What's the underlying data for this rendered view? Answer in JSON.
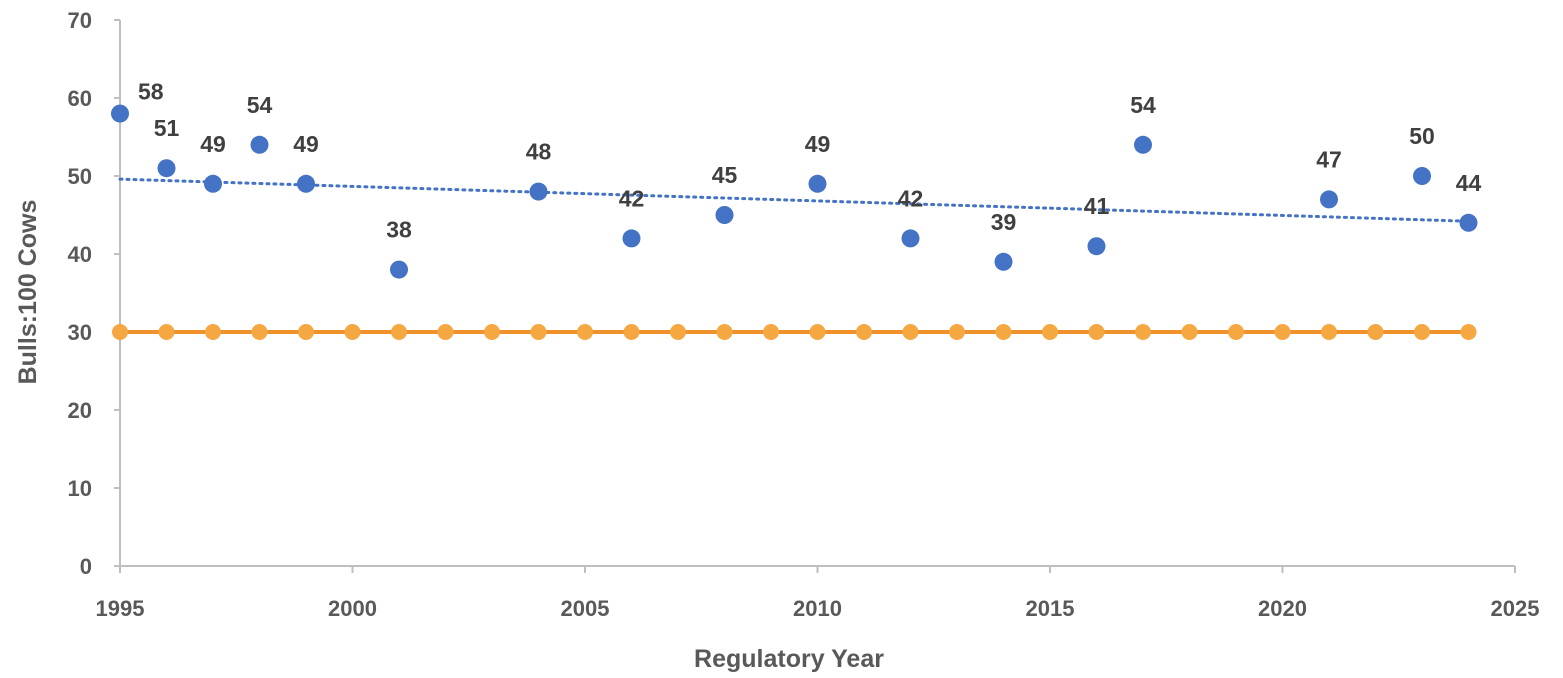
{
  "chart_data": {
    "type": "scatter",
    "xlabel": "Regulatory Year",
    "ylabel": "Bulls:100 Cows",
    "xlim": [
      1995,
      2025
    ],
    "ylim": [
      0,
      70
    ],
    "x_ticks": [
      1995,
      2000,
      2005,
      2010,
      2015,
      2020,
      2025
    ],
    "y_ticks": [
      0,
      10,
      20,
      30,
      40,
      50,
      60,
      70
    ],
    "grid": false,
    "series": [
      {
        "kind": "scatter",
        "color": "#4472C4",
        "data_labels": true,
        "x": [
          1995,
          1996,
          1997,
          1998,
          1999,
          2001,
          2004,
          2006,
          2008,
          2010,
          2012,
          2014,
          2016,
          2017,
          2021,
          2023,
          2024
        ],
        "y": [
          58,
          51,
          49,
          54,
          49,
          38,
          48,
          42,
          45,
          49,
          42,
          39,
          41,
          54,
          47,
          50,
          44
        ],
        "trendline": {
          "type": "linear",
          "style": "dotted",
          "color": "#4472C4",
          "y_start": 49.6,
          "y_end": 44.2
        }
      },
      {
        "kind": "line",
        "color": "#F0922B",
        "marker_color": "#F5A742",
        "x": [
          1995,
          1996,
          1997,
          1998,
          1999,
          2000,
          2001,
          2002,
          2003,
          2004,
          2005,
          2006,
          2007,
          2008,
          2009,
          2010,
          2011,
          2012,
          2013,
          2014,
          2015,
          2016,
          2017,
          2018,
          2019,
          2020,
          2021,
          2022,
          2023,
          2024
        ],
        "y": [
          30,
          30,
          30,
          30,
          30,
          30,
          30,
          30,
          30,
          30,
          30,
          30,
          30,
          30,
          30,
          30,
          30,
          30,
          30,
          30,
          30,
          30,
          30,
          30,
          30,
          30,
          30,
          30,
          30,
          30
        ]
      }
    ]
  }
}
